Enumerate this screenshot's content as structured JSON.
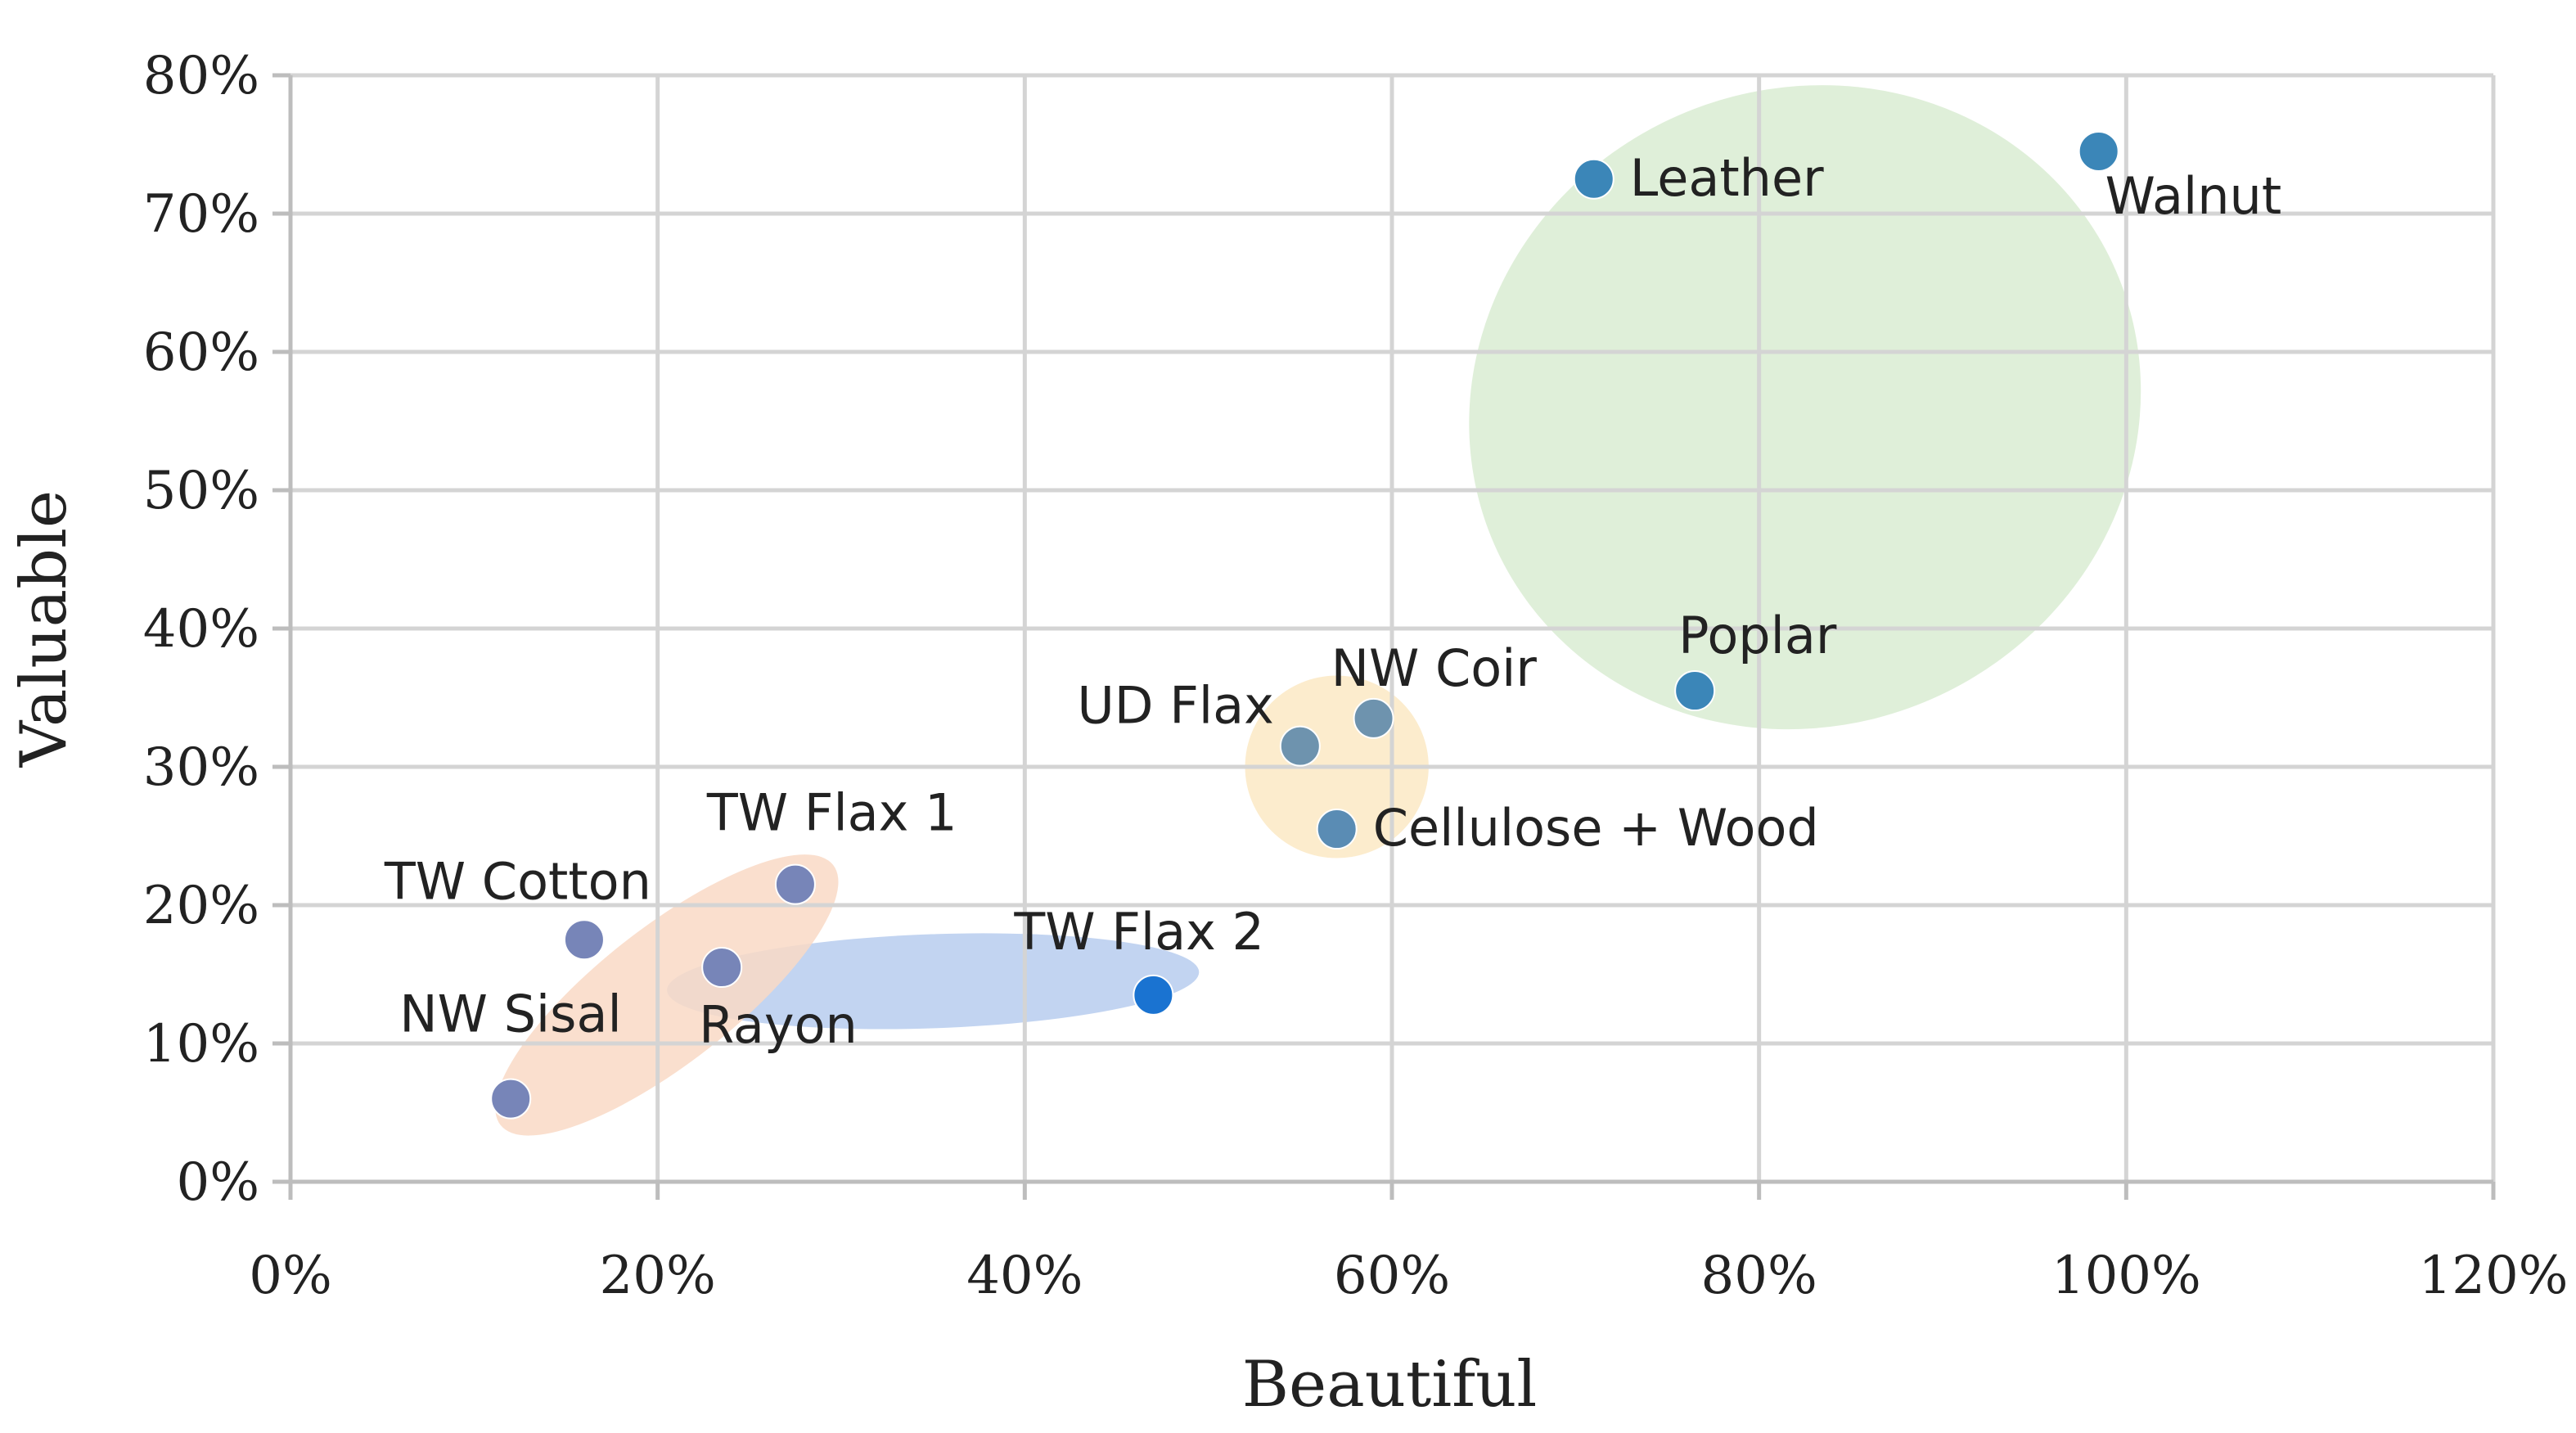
{
  "chart_data": {
    "type": "scatter",
    "xlabel": "Beautiful",
    "ylabel": "Valuable",
    "xlim": [
      0,
      120
    ],
    "ylim": [
      0,
      80
    ],
    "x_ticks": [
      0,
      20,
      40,
      60,
      80,
      100,
      120
    ],
    "y_ticks": [
      0,
      10,
      20,
      30,
      40,
      50,
      60,
      70,
      80
    ],
    "x_tick_labels": [
      "0%",
      "20%",
      "40%",
      "60%",
      "80%",
      "100%",
      "120%"
    ],
    "y_tick_labels": [
      "0%",
      "10%",
      "20%",
      "30%",
      "40%",
      "50%",
      "60%",
      "70%",
      "80%"
    ],
    "grid": true,
    "points": [
      {
        "label": "Leather",
        "x": 71,
        "y": 72.5,
        "color": "#3b86b8"
      },
      {
        "label": "Walnut",
        "x": 98.5,
        "y": 74.5,
        "color": "#3b86b8"
      },
      {
        "label": "Poplar",
        "x": 76.5,
        "y": 35.5,
        "color": "#3b86b8"
      },
      {
        "label": "NW Coir",
        "x": 59,
        "y": 33.5,
        "color": "#6e93ae"
      },
      {
        "label": "UD Flax",
        "x": 55,
        "y": 31.5,
        "color": "#6e93ae"
      },
      {
        "label": "Cellulose + Wood",
        "x": 57,
        "y": 25.5,
        "color": "#5a8cb4"
      },
      {
        "label": "TW Flax 1",
        "x": 27.5,
        "y": 21.5,
        "color": "#7785b8"
      },
      {
        "label": "TW Cotton",
        "x": 16,
        "y": 17.5,
        "color": "#7785b8"
      },
      {
        "label": "Rayon",
        "x": 23.5,
        "y": 15.5,
        "color": "#7785b8"
      },
      {
        "label": "TW Flax 2",
        "x": 47,
        "y": 13.5,
        "color": "#1a73d1"
      },
      {
        "label": "NW Sisal",
        "x": 12,
        "y": 6,
        "color": "#7785b8"
      }
    ],
    "clusters": [
      {
        "color": "#d9ecd2"
      },
      {
        "color": "#fbe9c4"
      },
      {
        "color": "#b7cdef"
      },
      {
        "color": "#f9d9c5"
      }
    ]
  }
}
